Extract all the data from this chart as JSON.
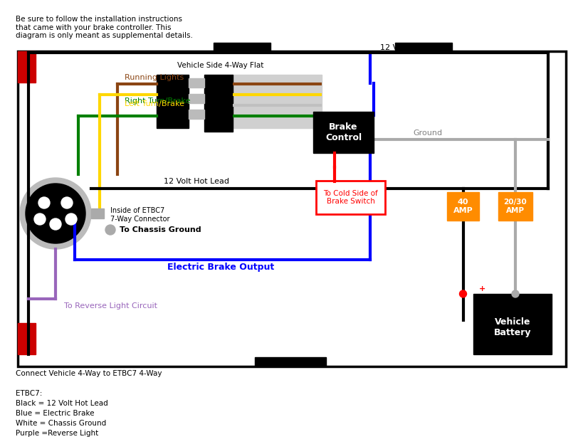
{
  "title_text": "Be sure to follow the installation instructions\nthat came with your brake controller. This\ndiagram is only meant as supplemental details.",
  "footer_text": "Connect Vehicle 4-Way to ETBC7 4-Way\n\nETBC7:\nBlack = 12 Volt Hot Lead\nBlue = Electric Brake\nWhite = Chassis Ground\nPurple =Reverse Light",
  "vehicle_side_label": "Vehicle Side 4-Way Flat",
  "brake_control_label": "Brake\nControl",
  "cold_side_label": "To Cold Side of\nBrake Switch",
  "ground_label": "Ground",
  "hot_lead_label": "12 Volt Hot Lead",
  "hot_lead_label2": "12 Volt Hot Lead",
  "running_lights_label": "Running Lights",
  "right_turn_label": "Right Turn/Brake",
  "left_turn_label": "Left Turn/Brake",
  "chassis_ground_label": "To Chassis Ground",
  "electric_brake_label": "Electric Brake Output",
  "reverse_label": "To Reverse Light Circuit",
  "etbc7_label": "Inside of ETBC7\n7-Way Connector",
  "amp40_label": "40\nAMP",
  "amp2030_label": "20/30\nAMP",
  "vehicle_battery_label": "Vehicle\nBattery",
  "bg_color": "#ffffff",
  "wire_black": "#000000",
  "wire_brown": "#8B4513",
  "wire_yellow": "#FFD700",
  "wire_green": "#008000",
  "wire_blue": "#0000FF",
  "wire_purple": "#9966BB",
  "wire_gray": "#AAAAAA",
  "wire_red": "#FF0000",
  "orange_color": "#FF8C00"
}
